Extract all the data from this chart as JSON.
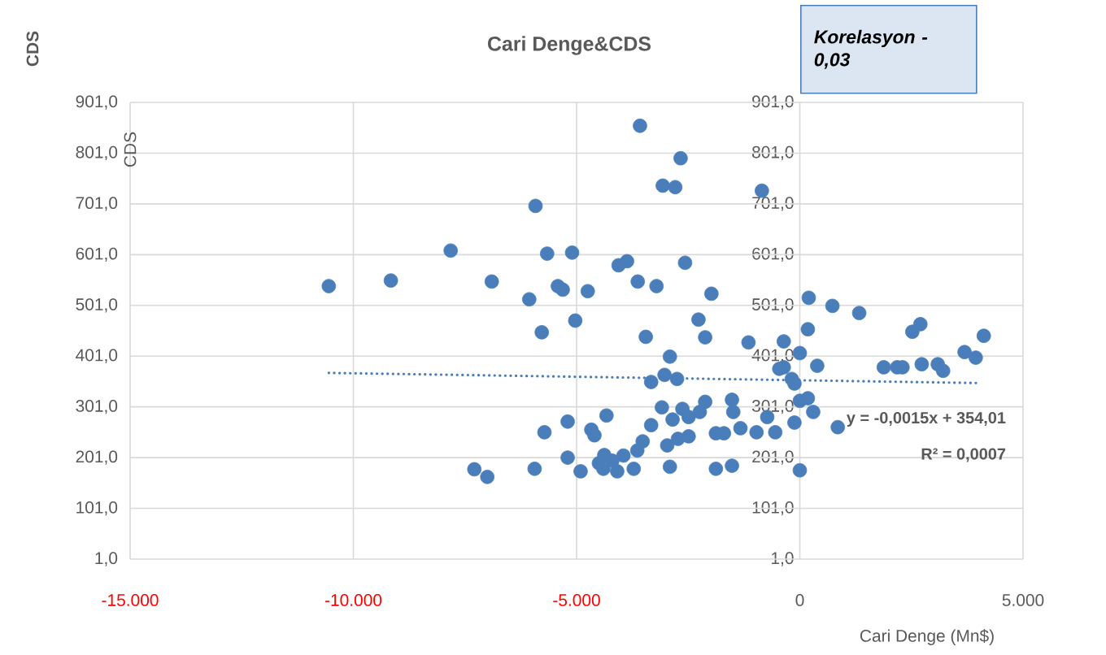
{
  "chart_data": {
    "type": "scatter",
    "title": "Cari Denge&CDS",
    "xlabel": "Cari Denge (Mn$)",
    "ylabel": "CDS",
    "annotations": [
      "Korelasyon - 0,03",
      "y = -0,0015x + 354,01",
      "R² = 0,0007",
      "CDS"
    ],
    "xlim": [
      -15000,
      5000
    ],
    "xticks": [
      {
        "value": -15000,
        "label": "-15.000"
      },
      {
        "value": -10000,
        "label": "-10.000"
      },
      {
        "value": -5000,
        "label": "-5.000"
      },
      0,
      {
        "value": 5000,
        "label": "5.000"
      }
    ],
    "ylim": [
      1,
      901
    ],
    "yticks": [
      {
        "value": 1,
        "label": "1,0"
      },
      {
        "value": 101,
        "label": "101,0"
      },
      {
        "value": 201,
        "label": "201,0"
      },
      {
        "value": 301,
        "label": "301,0"
      },
      {
        "value": 401,
        "label": "401,0"
      },
      {
        "value": 501,
        "label": "501,0"
      },
      {
        "value": 601,
        "label": "601,0"
      },
      {
        "value": 701,
        "label": "701,0"
      },
      {
        "value": 801,
        "label": "801,0"
      },
      {
        "value": 901,
        "label": "901,0"
      }
    ],
    "y2lim": [
      1,
      901
    ],
    "y2ticks": [
      {
        "value": 1,
        "label": "1,0"
      },
      {
        "value": 101,
        "label": "101,0"
      },
      {
        "value": 201,
        "label": "201,0"
      },
      {
        "value": 301,
        "label": "301,0"
      },
      {
        "value": 401,
        "label": "401,0"
      },
      {
        "value": 501,
        "label": "501,0"
      },
      {
        "value": 601,
        "label": "601,0"
      },
      {
        "value": 701,
        "label": "701,0"
      },
      {
        "value": 801,
        "label": "801,0"
      },
      {
        "value": 901,
        "label": "901,0"
      }
    ],
    "grid": true,
    "series": [
      {
        "color": "#4a7ebb",
        "marker": "circle",
        "x": [
          -10550,
          -9160,
          -7820,
          -6900,
          -6060,
          -5920,
          -5780,
          -5660,
          -5420,
          -5310,
          -5100,
          -5030,
          -4750,
          -4060,
          -3870,
          -3630,
          -3580,
          -3450,
          -3210,
          -3070,
          -2790,
          -2670,
          -2570,
          -2270,
          -2120,
          -1980,
          -1150,
          -850,
          -360,
          180,
          200,
          730,
          1330,
          2520,
          2700,
          4120,
          -2910,
          0,
          -360,
          -460,
          390,
          1880,
          2180,
          2300,
          2730,
          3090,
          3210,
          3690,
          3940,
          -3330,
          -3030,
          -2750,
          -180,
          -120,
          180,
          0,
          300,
          850,
          -3090,
          -2630,
          -2120,
          -1520,
          -3330,
          -2850,
          -2490,
          -2240,
          -1490,
          -1330,
          -970,
          -730,
          -550,
          -120,
          -1880,
          -1700,
          -3520,
          -3640,
          -2970,
          -2730,
          -2490,
          -2910,
          -3720,
          -4090,
          -1880,
          -1520,
          0,
          -7290,
          -7000,
          -5940,
          -5720,
          -5200,
          -5200,
          -4910,
          -4670,
          -4600,
          -4330,
          -4380,
          -4400,
          -4500,
          -4200,
          -3950
        ],
        "values": [
          539,
          550,
          609,
          548,
          513,
          697,
          448,
          603,
          539,
          532,
          605,
          471,
          529,
          580,
          588,
          548,
          855,
          439,
          539,
          737,
          734,
          791,
          585,
          473,
          438,
          524,
          428,
          727,
          430,
          454,
          516,
          500,
          486,
          449,
          464,
          441,
          400,
          407,
          379,
          376,
          382,
          379,
          379,
          379,
          385,
          385,
          372,
          409,
          398,
          350,
          364,
          356,
          356,
          347,
          318,
          313,
          291,
          261,
          300,
          297,
          311,
          315,
          265,
          276,
          281,
          291,
          291,
          259,
          251,
          281,
          251,
          270,
          249,
          249,
          233,
          215,
          225,
          238,
          243,
          183,
          179,
          174,
          179,
          185,
          176,
          178,
          163,
          179,
          251,
          272,
          201,
          174,
          256,
          245,
          284,
          206,
          179,
          190,
          195,
          205
        ]
      },
      {
        "type": "line",
        "line_style": "dotted",
        "marker": "none",
        "color": "#4a7ebb",
        "x": [
          -10550,
          4000
        ],
        "values": [
          368,
          348
        ]
      }
    ]
  }
}
